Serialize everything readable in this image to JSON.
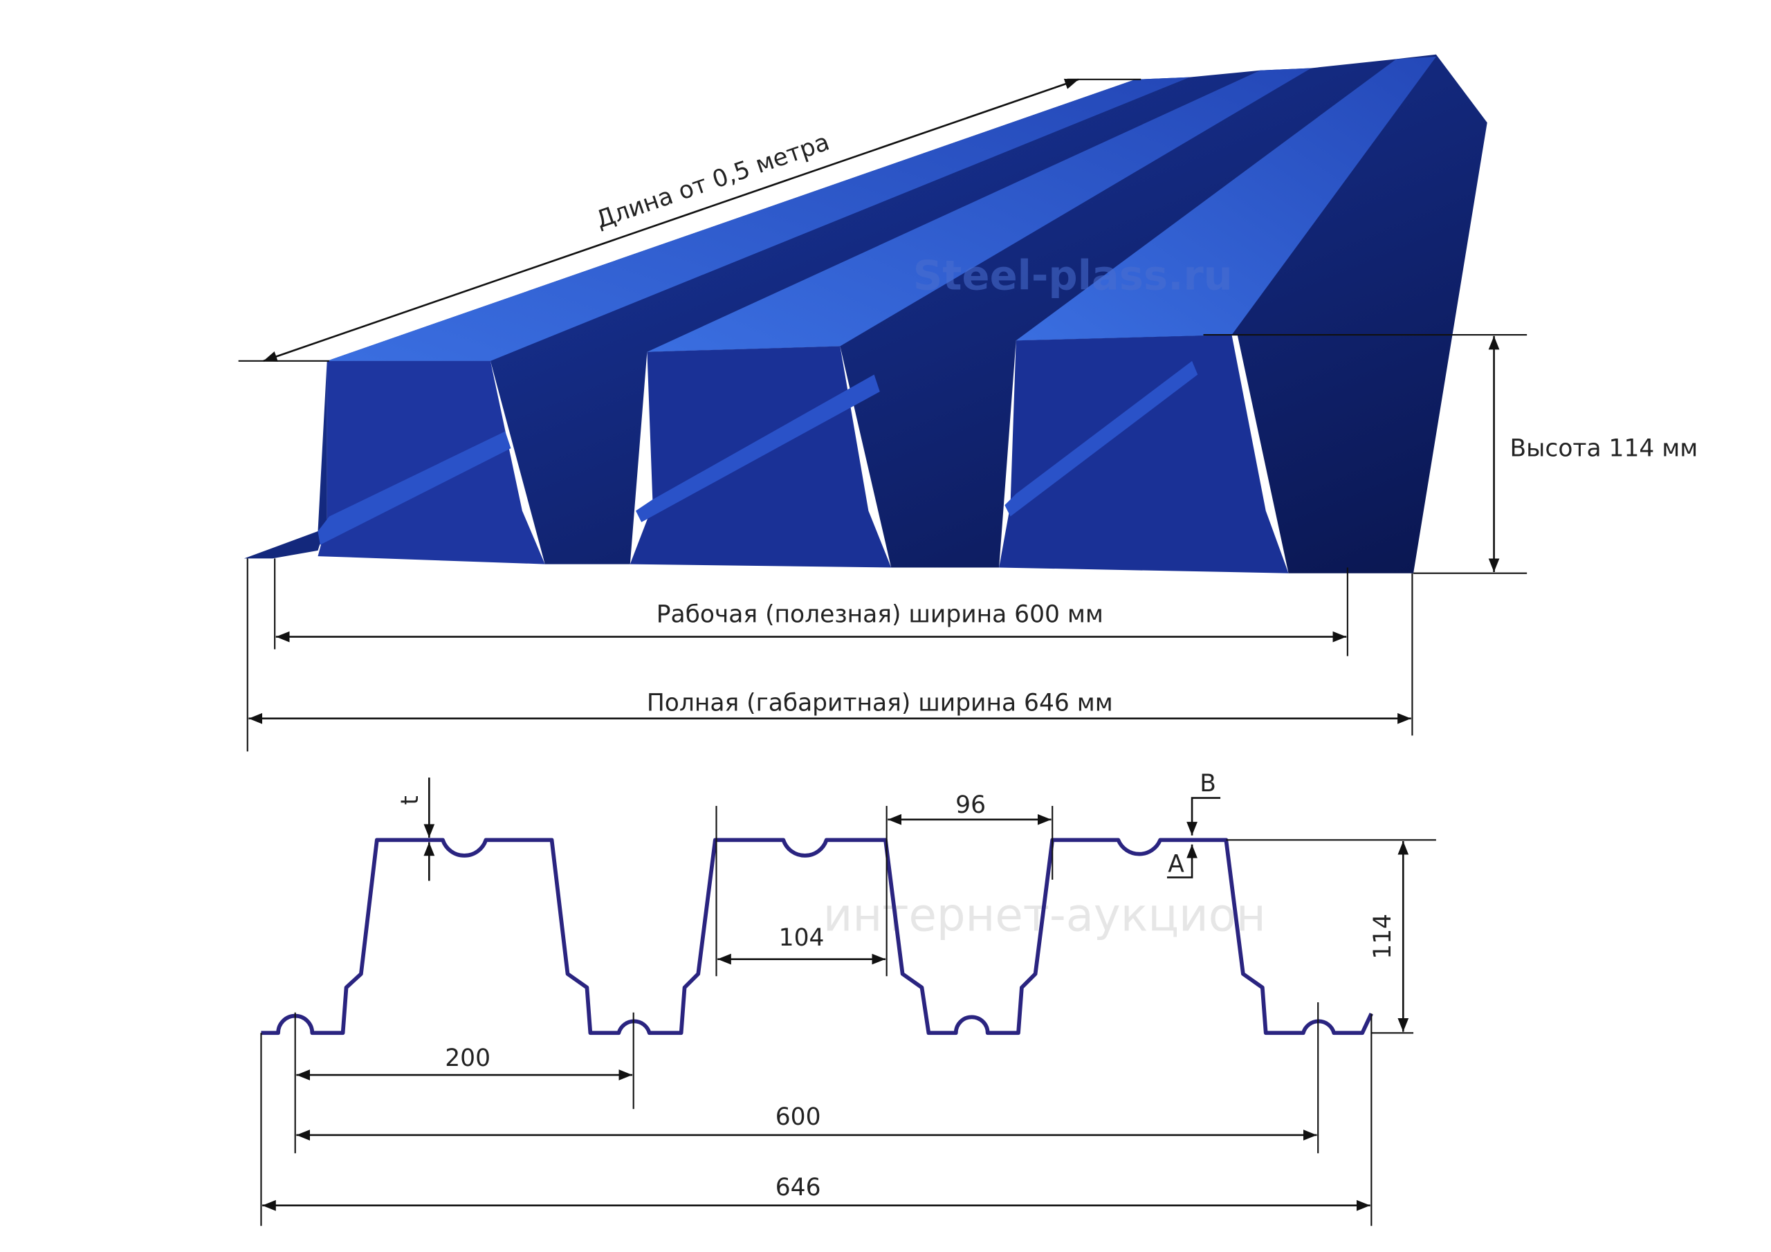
{
  "top": {
    "length_label": "Длина от 0,5 метра",
    "height_label": "Высота 114 мм",
    "working_width_label": "Рабочая (полезная) ширина 600 мм",
    "full_width_label": "Полная (габаритная) ширина 646 мм",
    "watermark": "Steel-plass.ru"
  },
  "section": {
    "thickness": "t",
    "top_flange": "96",
    "bottom_gap": "104",
    "height": "114",
    "pitch": "200",
    "working_width": "600",
    "full_width": "646",
    "point_b": "B",
    "point_a": "A",
    "watermark": "интернет-аукцион"
  }
}
